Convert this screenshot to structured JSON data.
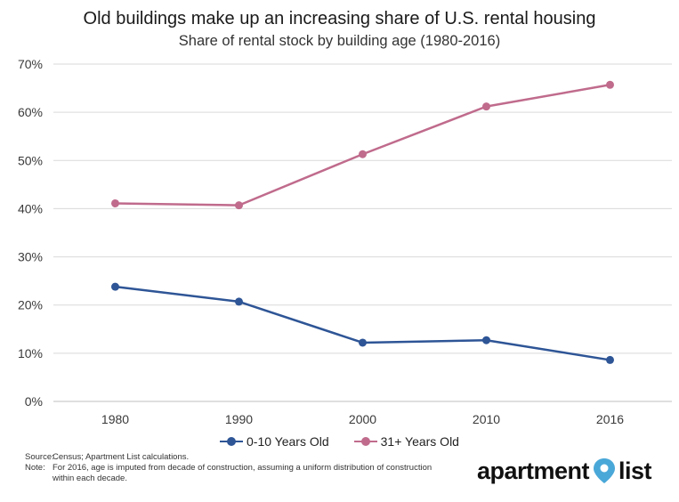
{
  "chart_data": {
    "type": "line",
    "title": "Old buildings make up an increasing share of U.S. rental housing",
    "subtitle": "Share of rental stock by building age (1980-2016)",
    "categories": [
      "1980",
      "1990",
      "2000",
      "2010",
      "2016"
    ],
    "y_ticks": [
      "0%",
      "10%",
      "20%",
      "30%",
      "40%",
      "50%",
      "60%",
      "70%"
    ],
    "ylim": [
      0,
      70
    ],
    "grid": true,
    "legend_position": "bottom",
    "series": [
      {
        "name": "0-10 Years Old",
        "color": "#2e5596",
        "values": [
          23.8,
          20.7,
          12.2,
          12.7,
          8.6
        ]
      },
      {
        "name": "31+ Years Old",
        "color": "#c06b8c",
        "values": [
          41.1,
          40.7,
          51.3,
          61.2,
          65.7
        ]
      }
    ]
  },
  "footer": {
    "source_label": "Source:",
    "source_text": "Census; Apartment List calculations.",
    "note_label": "Note:",
    "note_text": "For 2016, age is imputed from decade of construction, assuming a uniform distribution of construction within each decade."
  },
  "logo": {
    "word1": "apartment",
    "word2": "list",
    "icon": "location-pin-icon",
    "color": "#4aa8d8"
  }
}
